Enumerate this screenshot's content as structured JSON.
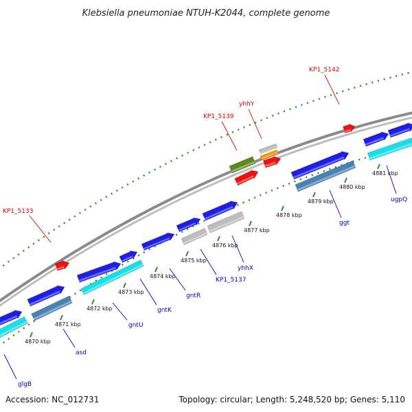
{
  "title": "Klebsiella pneumoniae NTUH-K2044, complete genome",
  "accession": "Accession: NC_012731",
  "topology": "Topology: circular; Length: 5,248,520 bp; Genes: 5,110",
  "colors": {
    "backbone": "#8a8a8a",
    "dots": "#2e8b2e",
    "gene_blue": "#1e1ee6",
    "gene_cyan": "#19e0e6",
    "gene_steel": "#4b82b4",
    "gene_gray": "#bdbdbd",
    "gene_red": "#ee1111",
    "gene_olive": "#5c8a22",
    "gene_orange": "#ff9900",
    "label_red": "#dd0000",
    "label_blue": "#0000bb"
  },
  "ticks": [
    "4870 kbp",
    "4871 kbp",
    "4872 kbp",
    "4873 kbp",
    "4874 kbp",
    "4875 kbp",
    "4876 kbp",
    "4877 kbp",
    "4878 kbp",
    "4879 kbp",
    "4880 kbp",
    "4881 kbp"
  ],
  "labels_top": [
    "KP1_5133",
    "KP1_5139",
    "yhhY",
    "KP1_5142"
  ],
  "labels_bottom": [
    "glgB",
    "asd",
    "gntU",
    "gntK",
    "gntR",
    "KP1_5137",
    "yhhX",
    "ggt",
    "ugpQ"
  ]
}
